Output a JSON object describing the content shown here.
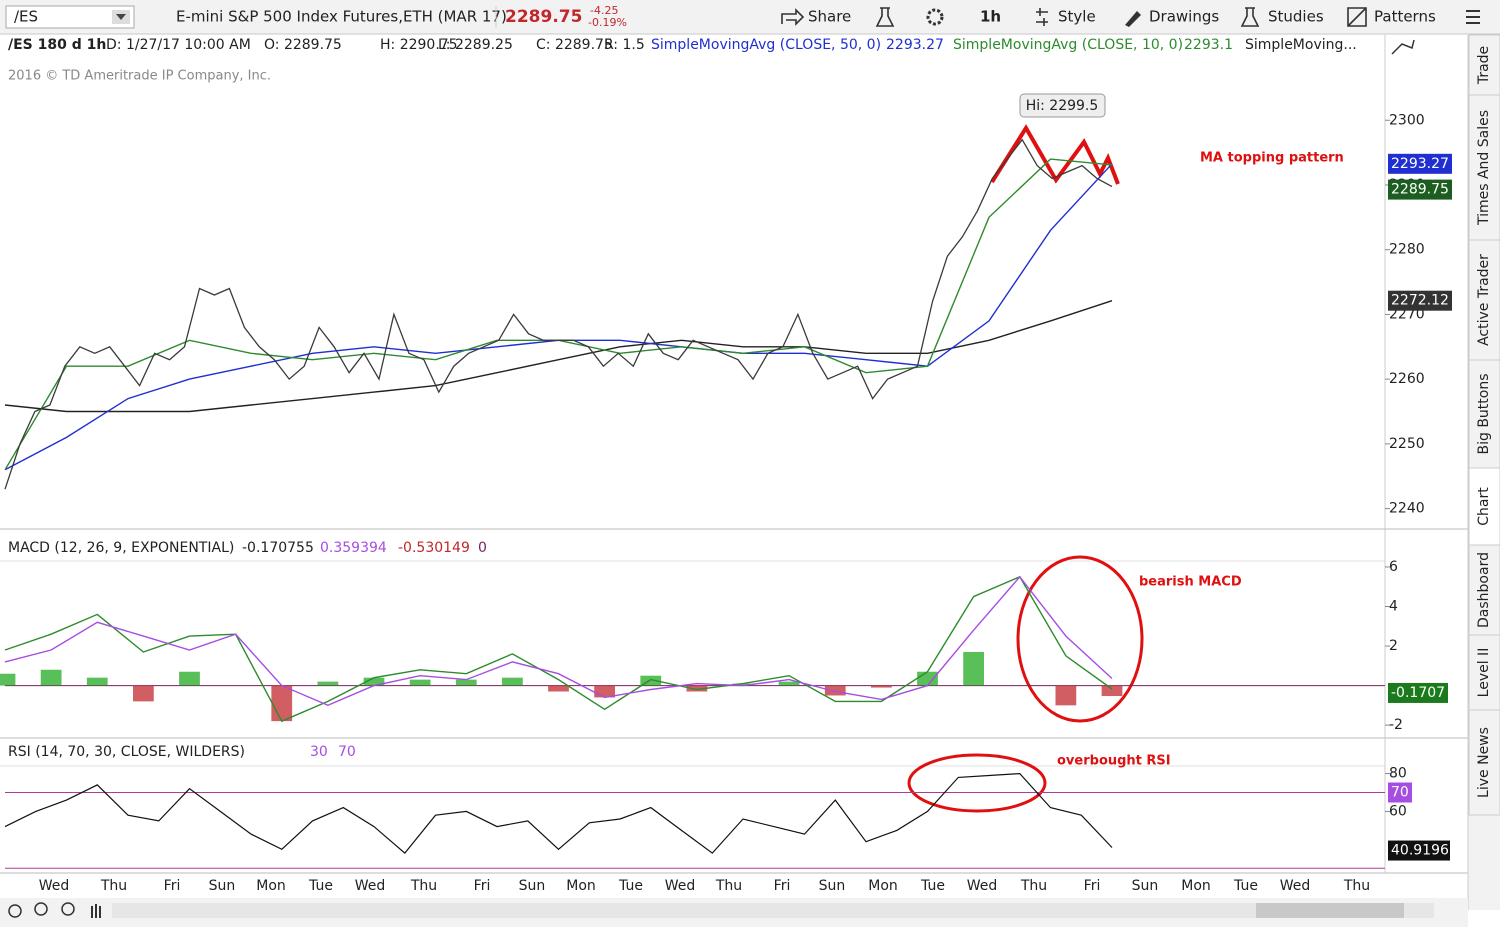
{
  "toolbar": {
    "symbol": "/ES",
    "description": "E-mini S&P 500 Index Futures,ETH (MAR 17)",
    "last": "2289.75",
    "change": "-4.25",
    "change_pct": "-0.19%",
    "share": "Share",
    "timeframe": "1h",
    "style": "Style",
    "drawings": "Drawings",
    "studies": "Studies",
    "patterns": "Patterns"
  },
  "info_line": {
    "chart": "/ES 180 d 1h",
    "date": "D: 1/27/17 10:00 AM",
    "open": "O: 2289.75",
    "high": "H: 2290.75",
    "low": "L: 2289.25",
    "close": "C: 2289.75",
    "range": "R: 1.5",
    "sma50_label": "SimpleMovingAvg (CLOSE, 50, 0)",
    "sma50_value": "2293.27",
    "sma10_label": "SimpleMovingAvg (CLOSE, 10, 0)",
    "sma10_value": "2293.1",
    "sma200_label": "SimpleMoving..."
  },
  "copyright": "2016 © TD Ameritrade IP Company, Inc.",
  "price_chart": {
    "ylim": [
      2237,
      2309
    ],
    "yticks": [
      2240,
      2250,
      2260,
      2270,
      2280,
      2290,
      2300
    ],
    "high_label": "Hi: 2299.5",
    "annotation": "MA topping pattern",
    "series": [
      {
        "name": "price",
        "color": "#3a3a3a",
        "values": [
          2243,
          2250,
          2255,
          2256,
          2262,
          2265,
          2264,
          2265,
          2262,
          2259,
          2264,
          2263,
          2265,
          2274,
          2273,
          2274,
          2268,
          2265,
          2263,
          2260,
          2262,
          2268,
          2265,
          2261,
          2264,
          2260,
          2270,
          2264,
          2263,
          2258,
          2262,
          2264,
          2265,
          2266,
          2270,
          2267,
          2266,
          2266,
          2266,
          2265,
          2262,
          2264,
          2262,
          2267,
          2264,
          2263,
          2266,
          2265,
          2264,
          2263,
          2260,
          2264,
          2265,
          2270,
          2264,
          2260,
          2261,
          2262,
          2257,
          2260,
          2261,
          2262,
          2272,
          2279,
          2282,
          2286,
          2291,
          2294,
          2297,
          2293,
          2291,
          2292,
          2293,
          2291,
          2289.75
        ]
      },
      {
        "name": "sma10",
        "color": "#2e8b2e",
        "values": [
          2246,
          2262,
          2262,
          2266,
          2264,
          2263,
          2264,
          2263,
          2266,
          2266,
          2264,
          2265,
          2264,
          2265,
          2261,
          2262,
          2285,
          2294,
          2293.1
        ]
      },
      {
        "name": "sma50",
        "color": "#1f2fd1",
        "values": [
          2246,
          2251,
          2257,
          2260,
          2262,
          2264,
          2265,
          2264,
          2265,
          2266,
          2266,
          2265,
          2264,
          2264,
          2263,
          2262,
          2269,
          2283,
          2293.27
        ],
        "box": "#1f2fd1"
      },
      {
        "name": "sma200",
        "color": "#222222",
        "values": [
          2256,
          2255,
          2255,
          2255,
          2256,
          2257,
          2258,
          2259,
          2261,
          2263,
          2265,
          2266,
          2265,
          2265,
          2264,
          2264,
          2266,
          2269,
          2272.12
        ],
        "box": "#333333"
      }
    ],
    "last_box": "#1b5e20"
  },
  "macd_chart": {
    "header": "MACD (12, 26, 9, EXPONENTIAL)",
    "value": "-0.170755",
    "avg": "0.359394",
    "diff": "-0.530149",
    "zero": "0",
    "ylim": [
      -2.5,
      6.2
    ],
    "yticks": [
      -2,
      2,
      4,
      6
    ],
    "zero_line": 0,
    "annotation": "bearish MACD",
    "last_label": "-0.1707",
    "series": [
      {
        "name": "macd",
        "color": "#2e8b2e",
        "values": [
          1.8,
          2.6,
          3.6,
          1.7,
          2.5,
          2.6,
          -1.8,
          -0.8,
          0.4,
          0.8,
          0.6,
          1.6,
          0.3,
          -1.2,
          0.3,
          -0.2,
          0.1,
          0.5,
          -0.8,
          -0.8,
          0.7,
          4.5,
          5.5,
          1.5,
          -0.170755
        ]
      },
      {
        "name": "avg",
        "color": "#a64ee0",
        "values": [
          1.2,
          1.8,
          3.2,
          2.5,
          1.8,
          2.6,
          0.0,
          -1.0,
          0.0,
          0.5,
          0.3,
          1.2,
          0.6,
          -0.6,
          -0.2,
          0.1,
          0.0,
          0.3,
          -0.3,
          -0.7,
          0.0,
          2.8,
          5.5,
          2.5,
          0.359394
        ]
      },
      {
        "name": "diff",
        "color": "#22aa22",
        "negative_color": "#c0282d",
        "values": [
          0.6,
          0.8,
          0.4,
          -0.8,
          0.7,
          0.0,
          -1.8,
          0.2,
          0.4,
          0.3,
          0.3,
          0.4,
          -0.3,
          -0.6,
          0.5,
          -0.3,
          0.1,
          0.2,
          -0.5,
          -0.1,
          0.7,
          1.7,
          0.0,
          -1.0,
          -0.530149
        ]
      }
    ]
  },
  "rsi_chart": {
    "header": "RSI (14, 70, 30, CLOSE, WILDERS)",
    "ylim": [
      28,
      84
    ],
    "yticks": [
      60,
      80
    ],
    "overbought": 70,
    "oversold": 30,
    "annotation": "overbought RSI",
    "series": [
      {
        "name": "rsi",
        "color": "#111111",
        "values": [
          52,
          60,
          66,
          74,
          58,
          55,
          72,
          60,
          48,
          40,
          55,
          62,
          52,
          38,
          58,
          60,
          52,
          55,
          40,
          54,
          56,
          62,
          50,
          38,
          56,
          52,
          48,
          66,
          44,
          50,
          60,
          78,
          79,
          80,
          62,
          58,
          40.9196
        ]
      }
    ]
  },
  "x_axis_days": [
    "Wed",
    "Thu",
    "Fri",
    "Sun",
    "Mon",
    "Tue",
    "Wed",
    "Thu",
    "Fri",
    "Sun",
    "Mon",
    "Tue",
    "Wed",
    "Thu",
    "Fri",
    "Sun",
    "Mon",
    "Tue",
    "Wed",
    "Thu",
    "Fri",
    "Sun",
    "Mon",
    "Tue",
    "Wed",
    "Thu"
  ],
  "side_tabs": [
    "Trade",
    "Times And Sales",
    "Active Trader",
    "Big Buttons",
    "Chart",
    "Dashboard",
    "Level II",
    "Live News"
  ]
}
